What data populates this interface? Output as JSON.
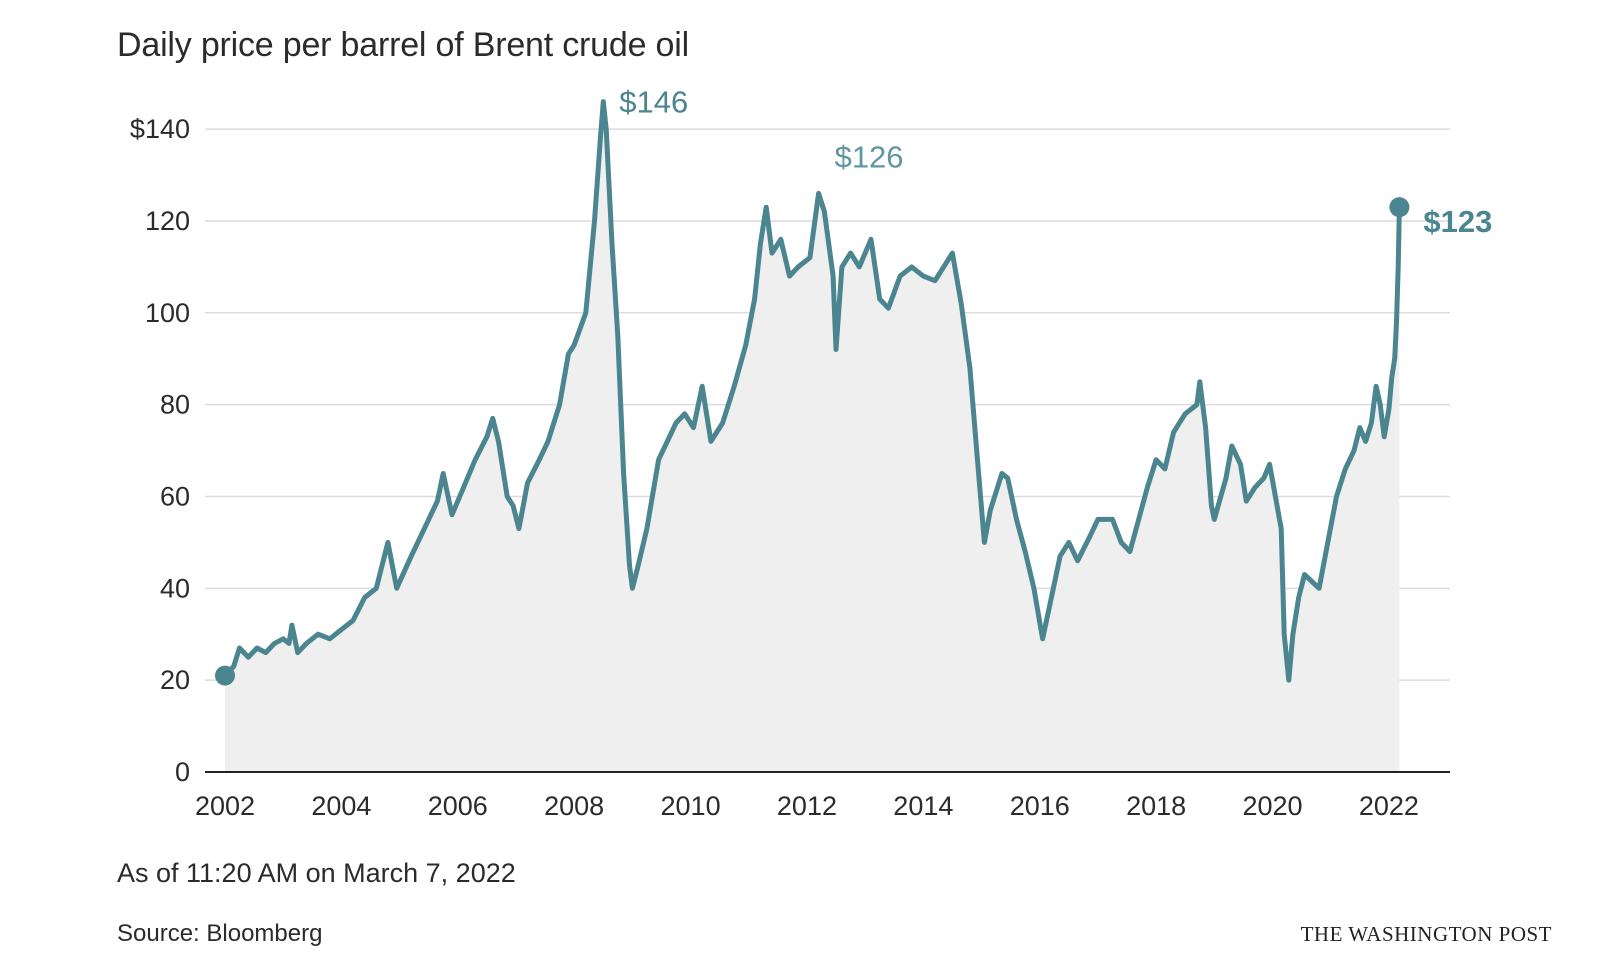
{
  "chart_data": {
    "type": "area",
    "title": "Daily price per barrel of Brent crude oil",
    "xlabel": "",
    "ylabel": "",
    "x_ticks": [
      "2002",
      "2004",
      "2006",
      "2008",
      "2010",
      "2012",
      "2014",
      "2016",
      "2018",
      "2020",
      "2022"
    ],
    "y_ticks": [
      "$140",
      "120",
      "100",
      "80",
      "60",
      "40",
      "20",
      "0"
    ],
    "xlim": [
      2002.0,
      2022.5
    ],
    "ylim": [
      0,
      146
    ],
    "grid": true,
    "colors": {
      "line": "#4b8590",
      "fill": "#efefef",
      "grid": "#dcdcdc",
      "axis": "#222222"
    },
    "series": [
      {
        "points": [
          [
            2002.0,
            21
          ],
          [
            2002.15,
            23
          ],
          [
            2002.25,
            27
          ],
          [
            2002.4,
            25
          ],
          [
            2002.55,
            27
          ],
          [
            2002.7,
            26
          ],
          [
            2002.85,
            28
          ],
          [
            2003.0,
            29
          ],
          [
            2003.1,
            28
          ],
          [
            2003.15,
            32
          ],
          [
            2003.25,
            26
          ],
          [
            2003.4,
            28
          ],
          [
            2003.6,
            30
          ],
          [
            2003.8,
            29
          ],
          [
            2004.0,
            31
          ],
          [
            2004.2,
            33
          ],
          [
            2004.4,
            38
          ],
          [
            2004.6,
            40
          ],
          [
            2004.8,
            50
          ],
          [
            2004.95,
            40
          ],
          [
            2005.2,
            47
          ],
          [
            2005.5,
            55
          ],
          [
            2005.65,
            59
          ],
          [
            2005.75,
            65
          ],
          [
            2005.9,
            56
          ],
          [
            2006.1,
            62
          ],
          [
            2006.3,
            68
          ],
          [
            2006.5,
            73
          ],
          [
            2006.6,
            77
          ],
          [
            2006.7,
            72
          ],
          [
            2006.85,
            60
          ],
          [
            2006.95,
            58
          ],
          [
            2007.05,
            53
          ],
          [
            2007.2,
            63
          ],
          [
            2007.4,
            68
          ],
          [
            2007.55,
            72
          ],
          [
            2007.75,
            80
          ],
          [
            2007.9,
            91
          ],
          [
            2008.0,
            93
          ],
          [
            2008.2,
            100
          ],
          [
            2008.35,
            120
          ],
          [
            2008.45,
            138
          ],
          [
            2008.5,
            146
          ],
          [
            2008.55,
            140
          ],
          [
            2008.65,
            115
          ],
          [
            2008.75,
            95
          ],
          [
            2008.85,
            65
          ],
          [
            2008.95,
            45
          ],
          [
            2009.0,
            40
          ],
          [
            2009.1,
            45
          ],
          [
            2009.25,
            53
          ],
          [
            2009.45,
            68
          ],
          [
            2009.6,
            72
          ],
          [
            2009.75,
            76
          ],
          [
            2009.9,
            78
          ],
          [
            2010.05,
            75
          ],
          [
            2010.2,
            84
          ],
          [
            2010.35,
            72
          ],
          [
            2010.55,
            76
          ],
          [
            2010.75,
            84
          ],
          [
            2010.95,
            93
          ],
          [
            2011.1,
            103
          ],
          [
            2011.2,
            115
          ],
          [
            2011.3,
            123
          ],
          [
            2011.4,
            113
          ],
          [
            2011.55,
            116
          ],
          [
            2011.7,
            108
          ],
          [
            2011.85,
            110
          ],
          [
            2012.05,
            112
          ],
          [
            2012.2,
            126
          ],
          [
            2012.3,
            122
          ],
          [
            2012.45,
            108
          ],
          [
            2012.5,
            92
          ],
          [
            2012.6,
            110
          ],
          [
            2012.75,
            113
          ],
          [
            2012.9,
            110
          ],
          [
            2013.1,
            116
          ],
          [
            2013.25,
            103
          ],
          [
            2013.4,
            101
          ],
          [
            2013.6,
            108
          ],
          [
            2013.8,
            110
          ],
          [
            2014.0,
            108
          ],
          [
            2014.2,
            107
          ],
          [
            2014.4,
            111
          ],
          [
            2014.5,
            113
          ],
          [
            2014.65,
            102
          ],
          [
            2014.8,
            88
          ],
          [
            2014.95,
            65
          ],
          [
            2015.05,
            50
          ],
          [
            2015.15,
            57
          ],
          [
            2015.35,
            65
          ],
          [
            2015.45,
            64
          ],
          [
            2015.6,
            55
          ],
          [
            2015.75,
            48
          ],
          [
            2015.9,
            40
          ],
          [
            2016.05,
            29
          ],
          [
            2016.2,
            38
          ],
          [
            2016.35,
            47
          ],
          [
            2016.5,
            50
          ],
          [
            2016.65,
            46
          ],
          [
            2016.85,
            51
          ],
          [
            2017.0,
            55
          ],
          [
            2017.25,
            55
          ],
          [
            2017.4,
            50
          ],
          [
            2017.55,
            48
          ],
          [
            2017.7,
            55
          ],
          [
            2017.85,
            62
          ],
          [
            2018.0,
            68
          ],
          [
            2018.15,
            66
          ],
          [
            2018.3,
            74
          ],
          [
            2018.5,
            78
          ],
          [
            2018.7,
            80
          ],
          [
            2018.75,
            85
          ],
          [
            2018.85,
            75
          ],
          [
            2018.95,
            58
          ],
          [
            2019.0,
            55
          ],
          [
            2019.2,
            64
          ],
          [
            2019.3,
            71
          ],
          [
            2019.45,
            67
          ],
          [
            2019.55,
            59
          ],
          [
            2019.7,
            62
          ],
          [
            2019.85,
            64
          ],
          [
            2019.95,
            67
          ],
          [
            2020.05,
            60
          ],
          [
            2020.15,
            53
          ],
          [
            2020.2,
            30
          ],
          [
            2020.28,
            20
          ],
          [
            2020.35,
            30
          ],
          [
            2020.45,
            38
          ],
          [
            2020.55,
            43
          ],
          [
            2020.8,
            40
          ],
          [
            2020.95,
            50
          ],
          [
            2021.1,
            60
          ],
          [
            2021.25,
            66
          ],
          [
            2021.4,
            70
          ],
          [
            2021.5,
            75
          ],
          [
            2021.6,
            72
          ],
          [
            2021.7,
            76
          ],
          [
            2021.78,
            84
          ],
          [
            2021.85,
            80
          ],
          [
            2021.92,
            73
          ],
          [
            2022.0,
            79
          ],
          [
            2022.05,
            86
          ],
          [
            2022.1,
            90
          ],
          [
            2022.13,
            98
          ],
          [
            2022.16,
            110
          ],
          [
            2022.18,
            123
          ]
        ]
      }
    ],
    "annotations": [
      {
        "text": "$146",
        "x": 2008.5,
        "y": 146,
        "style": "normal"
      },
      {
        "text": "$126",
        "x": 2012.2,
        "y": 126,
        "style": "light"
      },
      {
        "text": "$123",
        "x": 2022.18,
        "y": 123,
        "style": "bold"
      }
    ],
    "markers": [
      {
        "x": 2002.0,
        "y": 21
      },
      {
        "x": 2022.18,
        "y": 123
      }
    ]
  },
  "footer": {
    "note": "As of 11:20 AM on March 7, 2022",
    "source": "Source: Bloomberg",
    "logo": "THE WASHINGTON POST"
  }
}
